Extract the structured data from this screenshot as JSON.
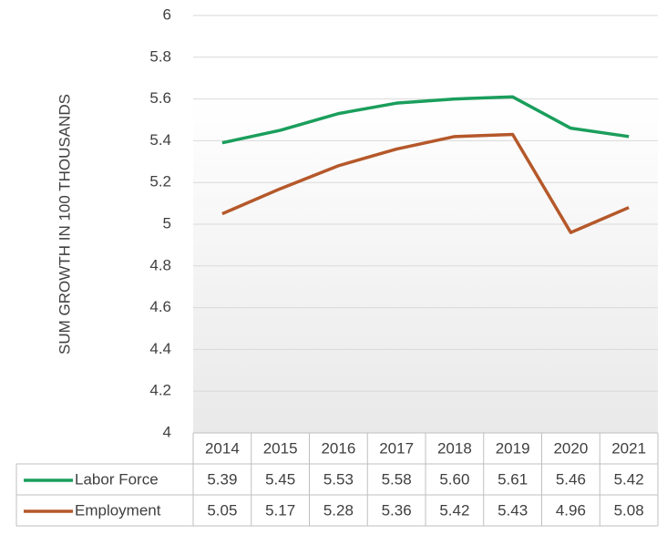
{
  "chart_data": {
    "type": "line",
    "y_label": "SUM GROWTH IN 100 THOUSANDS",
    "categories": [
      "2014",
      "2015",
      "2016",
      "2017",
      "2018",
      "2019",
      "2020",
      "2021"
    ],
    "series": [
      {
        "name": "Labor Force",
        "color": "#1a9e5c",
        "values": [
          5.39,
          5.45,
          5.53,
          5.58,
          5.6,
          5.61,
          5.46,
          5.42
        ],
        "value_labels": [
          "5.39",
          "5.45",
          "5.53",
          "5.58",
          "5.60",
          "5.61",
          "5.46",
          "5.42"
        ]
      },
      {
        "name": "Employment",
        "color": "#b5582a",
        "values": [
          5.05,
          5.17,
          5.28,
          5.36,
          5.42,
          5.43,
          4.96,
          5.08
        ],
        "value_labels": [
          "5.05",
          "5.17",
          "5.28",
          "5.36",
          "5.42",
          "5.43",
          "4.96",
          "5.08"
        ]
      }
    ],
    "ylim": [
      4,
      6
    ],
    "yticks": [
      4,
      4.2,
      4.4,
      4.6,
      4.8,
      5,
      5.2,
      5.4,
      5.6,
      5.8,
      6
    ],
    "grid": true,
    "legend": "data-table"
  }
}
